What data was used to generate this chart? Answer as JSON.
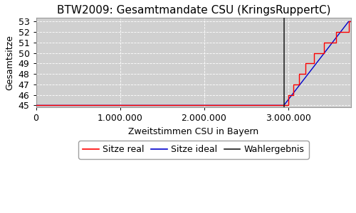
{
  "title": "BTW2009: Gesamtmandate CSU (KringsRuppertC)",
  "xlabel": "Zweitstimmen CSU in Bayern",
  "ylabel": "Gesamtsitze",
  "plot_bg_color": "#d0d0d0",
  "fig_bg_color": "#ffffff",
  "xlim": [
    0,
    3750000
  ],
  "ylim": [
    44.8,
    53.4
  ],
  "yticks": [
    45,
    46,
    47,
    48,
    49,
    50,
    51,
    52,
    53
  ],
  "xticks": [
    0,
    1000000,
    2000000,
    3000000
  ],
  "xticklabels": [
    "0",
    "1.000.000",
    "2.000.000",
    "3.000.000"
  ],
  "wahlergebnis": 2950000,
  "wahlergebnis_color": "#1a1a1a",
  "sitze_real_color": "#ff0000",
  "sitze_ideal_color": "#0000cc",
  "wahlergebnis_label": "Wahlergebnis",
  "sitze_real_label": "Sitze real",
  "sitze_ideal_label": "Sitze ideal",
  "title_fontsize": 11,
  "axis_label_fontsize": 9,
  "tick_fontsize": 9,
  "legend_fontsize": 9,
  "step_positions_real": [
    2950000,
    2970000,
    3000000,
    3030000,
    3060000,
    3090000,
    3130000,
    3170000,
    3210000,
    3260000,
    3310000,
    3370000,
    3430000,
    3500000,
    3570000,
    3640000,
    3720000
  ],
  "step_seats_real": [
    45,
    45,
    46,
    46,
    47,
    47,
    48,
    48,
    49,
    49,
    50,
    50,
    51,
    51,
    52,
    52,
    53
  ],
  "ideal_x_end": 3720000,
  "ideal_y_start": 45,
  "ideal_y_end": 53
}
